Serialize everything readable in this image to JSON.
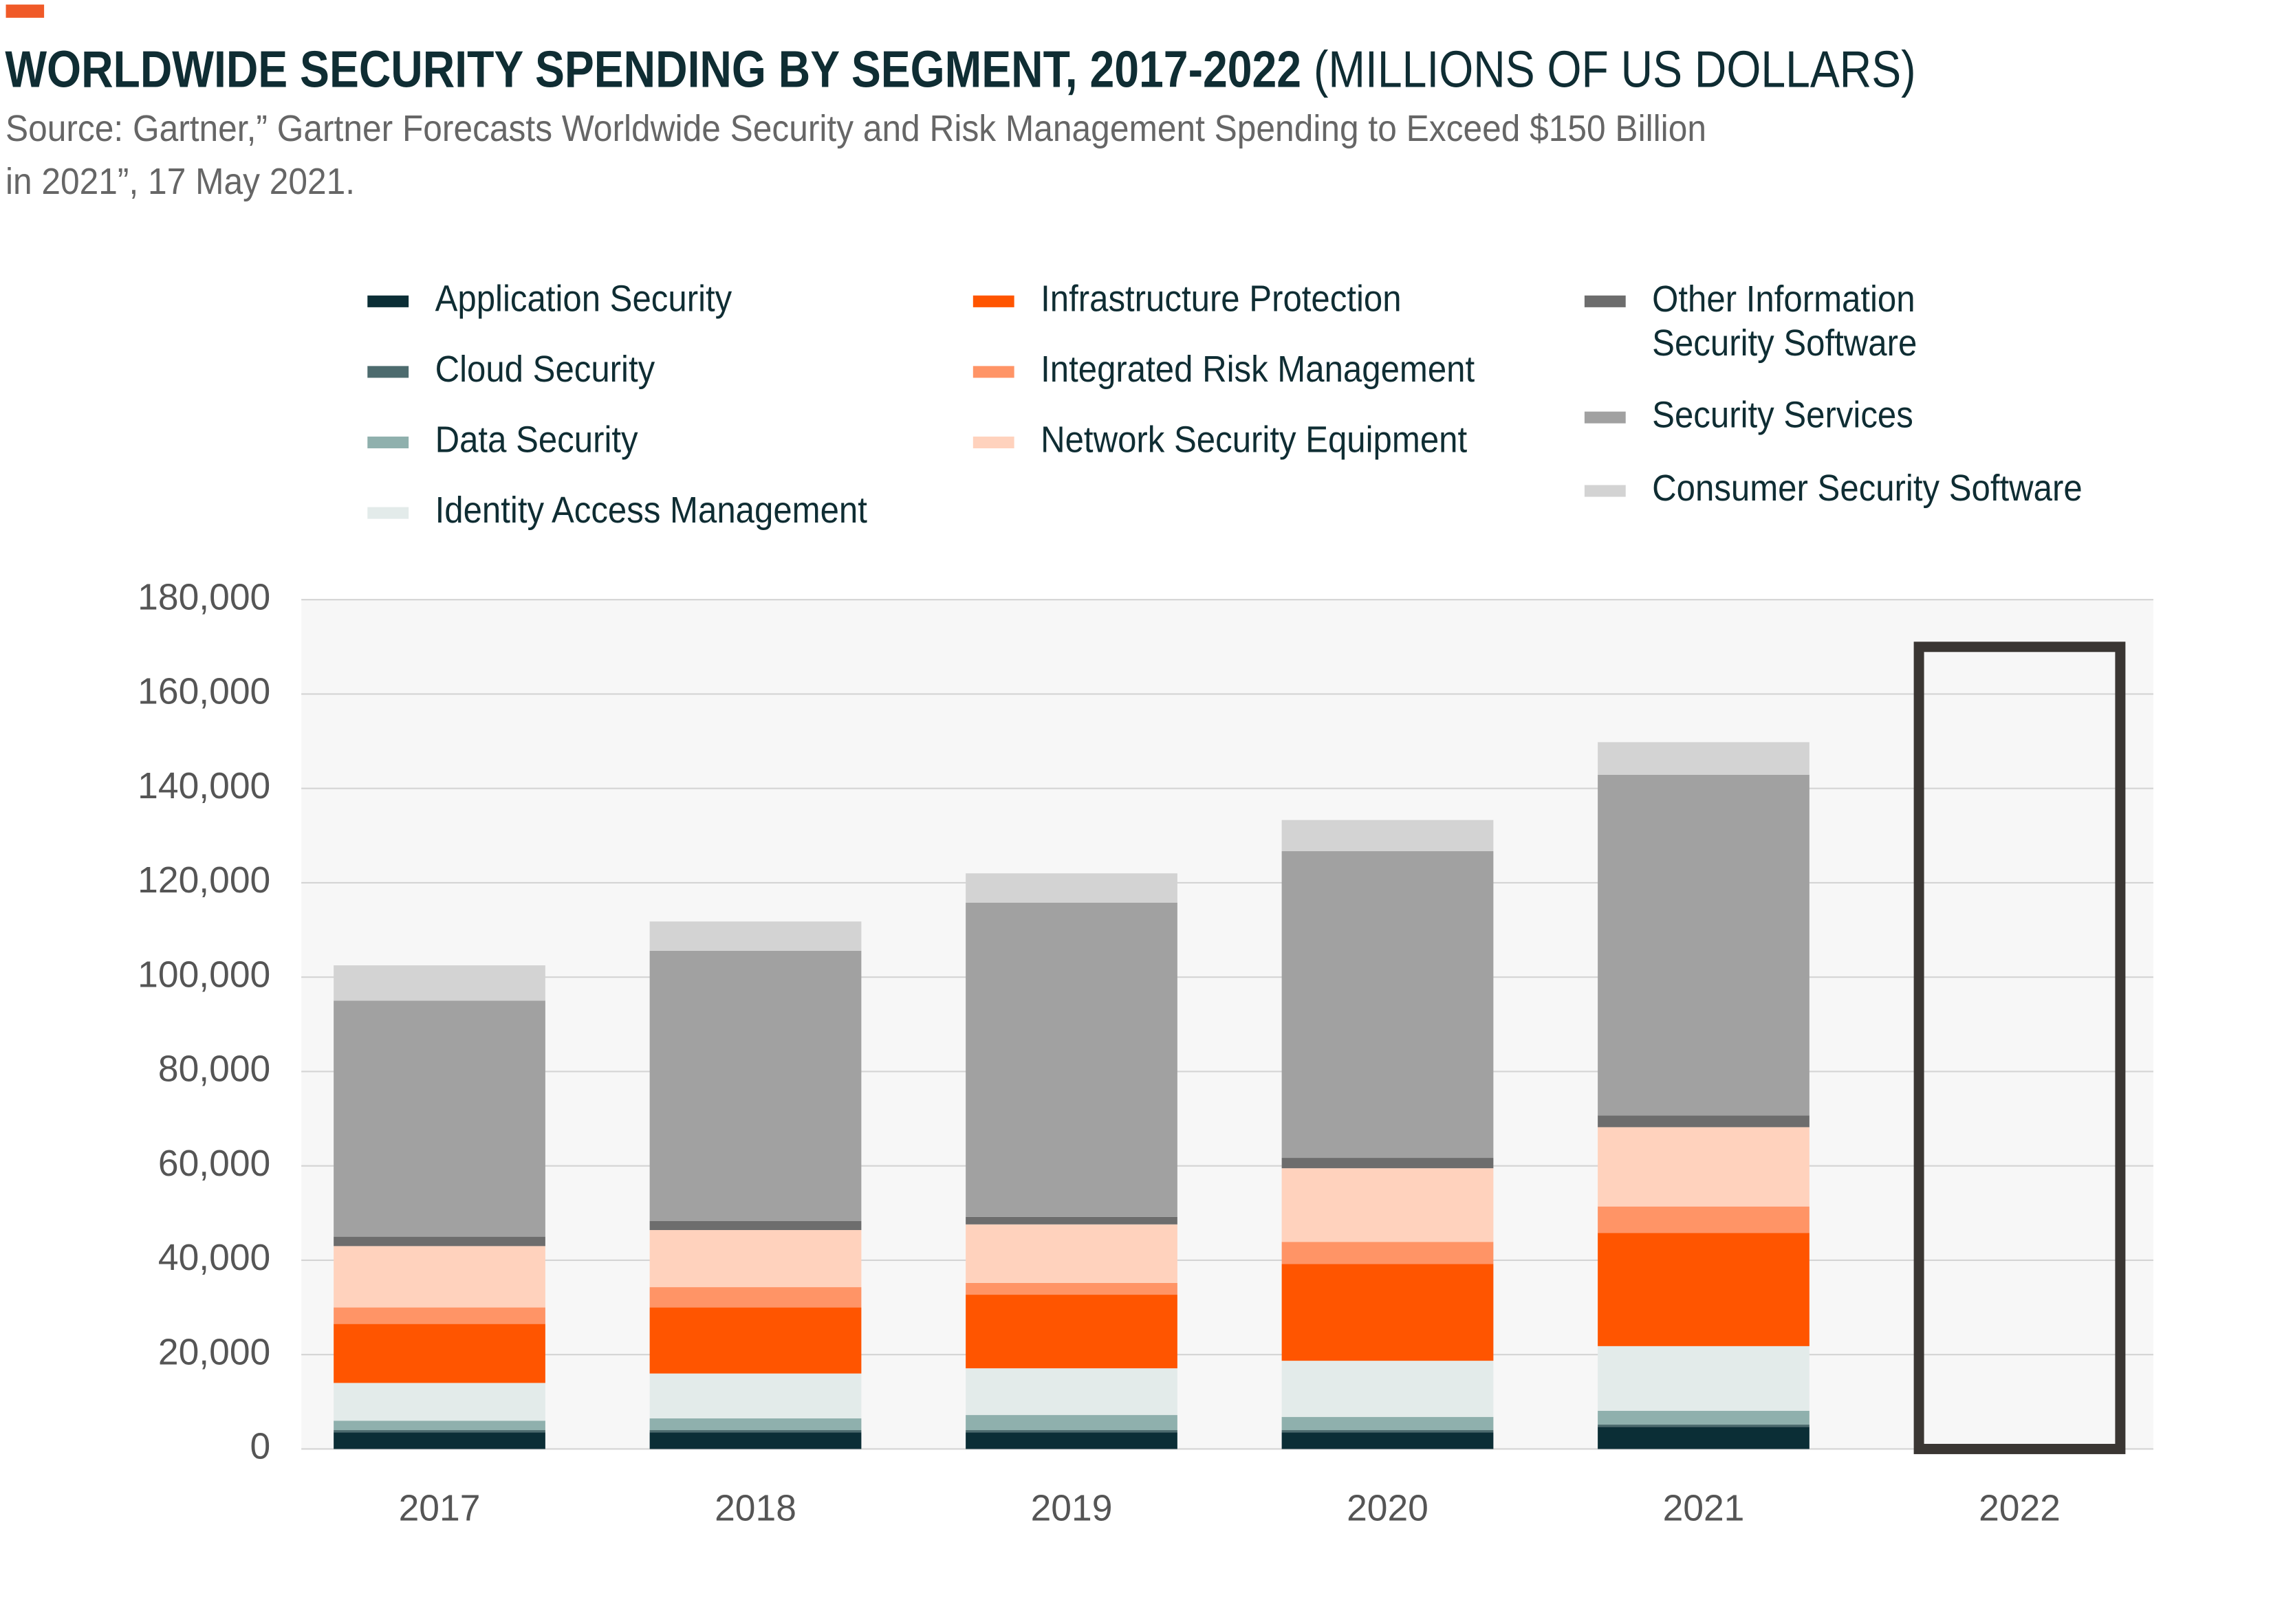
{
  "chart_data": {
    "type": "stacked_bar",
    "title": "WORLDWIDE SECURITY SPENDING BY SEGMENT, 2017-2022",
    "title_units": "(MILLIONS OF US DOLLARS)",
    "source": "Source: Gartner,” Gartner Forecasts Worldwide Security and Risk Management Spending to Exceed $150 Billion\nin 2021”, 17 May 2021.",
    "categories": [
      "2017",
      "2018",
      "2019",
      "2020",
      "2021",
      "2022"
    ],
    "series": [
      {
        "name": "Application Security",
        "color": "#0b2e36",
        "values": [
          3500,
          3500,
          3500,
          3500,
          4700,
          null
        ]
      },
      {
        "name": "Cloud Security",
        "color": "#4d6b6e",
        "values": [
          500,
          500,
          500,
          500,
          500,
          null
        ]
      },
      {
        "name": "Data Security",
        "color": "#8fb0ad",
        "values": [
          2000,
          2500,
          3200,
          2800,
          2900,
          null
        ]
      },
      {
        "name": "Identity Access Management",
        "color": "#e3ebea",
        "values": [
          8000,
          9500,
          9900,
          11900,
          13700,
          null
        ]
      },
      {
        "name": "Infrastructure Protection",
        "color": "#ff5500",
        "values": [
          12500,
          14000,
          15600,
          20500,
          24000,
          null
        ]
      },
      {
        "name": "Integrated Risk Management",
        "color": "#ff9466",
        "values": [
          3500,
          4300,
          2500,
          4700,
          5600,
          null
        ]
      },
      {
        "name": "Network Security Equipment",
        "color": "#ffd2bd",
        "values": [
          13000,
          12100,
          12400,
          15600,
          16800,
          null
        ]
      },
      {
        "name": "Other Information\nSecurity Software",
        "color": "#6d6d6d",
        "values": [
          2000,
          1900,
          1600,
          2200,
          2500,
          null
        ]
      },
      {
        "name": "Security Services",
        "color": "#a1a1a1",
        "values": [
          50000,
          57300,
          66600,
          65000,
          72200,
          null
        ]
      },
      {
        "name": "Consumer Security Software",
        "color": "#d3d3d3",
        "values": [
          7500,
          6200,
          6200,
          6600,
          6900,
          null
        ]
      }
    ],
    "forecast_total": {
      "color": "#3a3633",
      "values": [
        null,
        null,
        null,
        null,
        null,
        170000
      ]
    },
    "ylim": [
      0,
      180000
    ],
    "yticks": [
      0,
      {
        "value": 20000,
        "label": "20,000"
      },
      {
        "value": 40000,
        "label": "40,000"
      },
      {
        "value": 60000,
        "label": "60,000"
      },
      {
        "value": 80000,
        "label": "80,000"
      },
      {
        "value": 100000,
        "label": "100,000"
      },
      {
        "value": 120000,
        "label": "120,000"
      },
      {
        "value": 140000,
        "label": "140,000"
      },
      {
        "value": 160000,
        "label": "160,000"
      },
      {
        "value": 180000,
        "label": "180,000"
      }
    ],
    "grid": true
  }
}
